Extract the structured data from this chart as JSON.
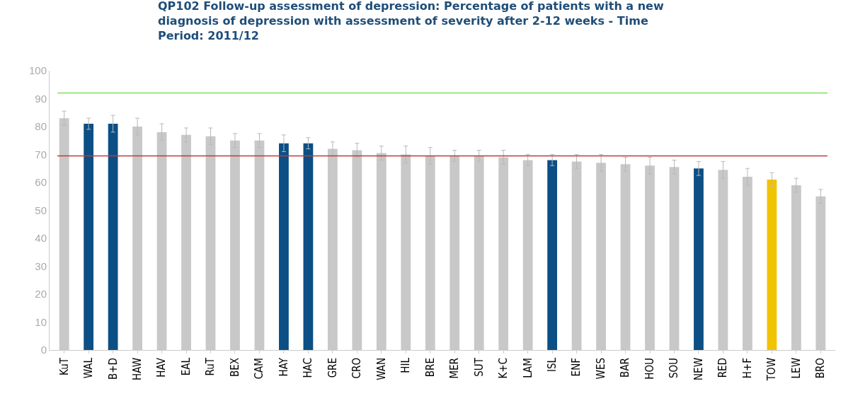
{
  "chart_data": {
    "type": "bar",
    "title": "QP102 Follow-up assessment of depression: Percentage of patients with a new diagnosis of depression with assessment of severity after 2-12 weeks - Time Period: 2011/12",
    "categories": [
      "KuT",
      "WAL",
      "B+D",
      "HAW",
      "HAV",
      "EAL",
      "RuT",
      "BEX",
      "CAM",
      "HAY",
      "HAC",
      "GRE",
      "CRO",
      "WAN",
      "HIL",
      "BRE",
      "MER",
      "SUT",
      "K+C",
      "LAM",
      "ISL",
      "ENF",
      "WES",
      "BAR",
      "HOU",
      "SOU",
      "NEW",
      "RED",
      "H+F",
      "TOW",
      "LEW",
      "BRO"
    ],
    "values": [
      83,
      81,
      81,
      80,
      78,
      77,
      76.5,
      75,
      75,
      74,
      74,
      72,
      71.5,
      70.5,
      70,
      69.5,
      69.5,
      69.5,
      69,
      68,
      68,
      67.5,
      67,
      66.5,
      66,
      65.5,
      65,
      64.5,
      62,
      61,
      59,
      55
    ],
    "errors": [
      2.5,
      2,
      3,
      3,
      3,
      2.5,
      3,
      2.5,
      2.5,
      3,
      2,
      2.5,
      2.5,
      2.5,
      3,
      3,
      2,
      2,
      2.5,
      2,
      2,
      2.5,
      3,
      2.5,
      3,
      2.5,
      2.5,
      3,
      3,
      2.5,
      2.5,
      2.5
    ],
    "colors": [
      "#c8c8c8",
      "#0b4f85",
      "#0b4f85",
      "#c8c8c8",
      "#c8c8c8",
      "#c8c8c8",
      "#c8c8c8",
      "#c8c8c8",
      "#c8c8c8",
      "#0b4f85",
      "#0b4f85",
      "#c8c8c8",
      "#c8c8c8",
      "#c8c8c8",
      "#c8c8c8",
      "#c8c8c8",
      "#c8c8c8",
      "#c8c8c8",
      "#c8c8c8",
      "#c8c8c8",
      "#0b4f85",
      "#c8c8c8",
      "#c8c8c8",
      "#c8c8c8",
      "#c8c8c8",
      "#c8c8c8",
      "#0b4f85",
      "#c8c8c8",
      "#c8c8c8",
      "#f2c300",
      "#c8c8c8",
      "#c8c8c8"
    ],
    "ylim": [
      0,
      100
    ],
    "yticks": [
      0,
      10,
      20,
      30,
      40,
      50,
      60,
      70,
      80,
      90,
      100
    ],
    "grid": false,
    "ref_lines": [
      {
        "axis": "y",
        "value": 92,
        "color": "#7ee060"
      },
      {
        "axis": "y",
        "value": 69.5,
        "color": "#c0393b"
      }
    ]
  }
}
